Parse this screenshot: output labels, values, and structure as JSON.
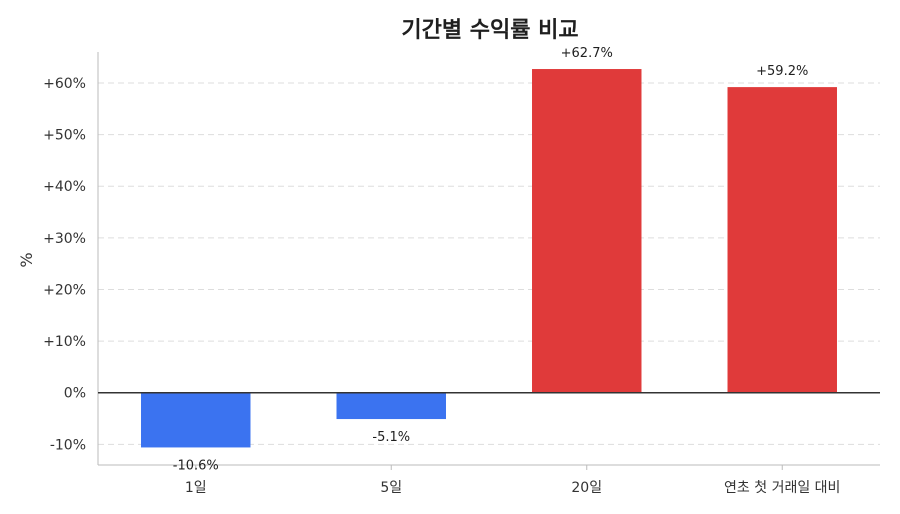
{
  "chart_data": {
    "type": "bar",
    "title": "기간별 수익률 비교",
    "xlabel": "",
    "ylabel": "%",
    "categories": [
      "1일",
      "5일",
      "20일",
      "연초 첫 거래일 대비"
    ],
    "values": [
      -10.6,
      -5.1,
      62.7,
      59.2
    ],
    "value_labels": [
      "-10.6%",
      "-5.1%",
      "+62.7%",
      "+59.2%"
    ],
    "ylim": [
      -14,
      66
    ],
    "yticks": [
      -10,
      0,
      10,
      20,
      30,
      40,
      50,
      60
    ],
    "ytick_labels": [
      "-10%",
      "0%",
      "+10%",
      "+20%",
      "+30%",
      "+40%",
      "+50%",
      "+60%"
    ],
    "grid": true,
    "colors": {
      "positive": "#e03a3a",
      "negative": "#3b73f0"
    }
  }
}
